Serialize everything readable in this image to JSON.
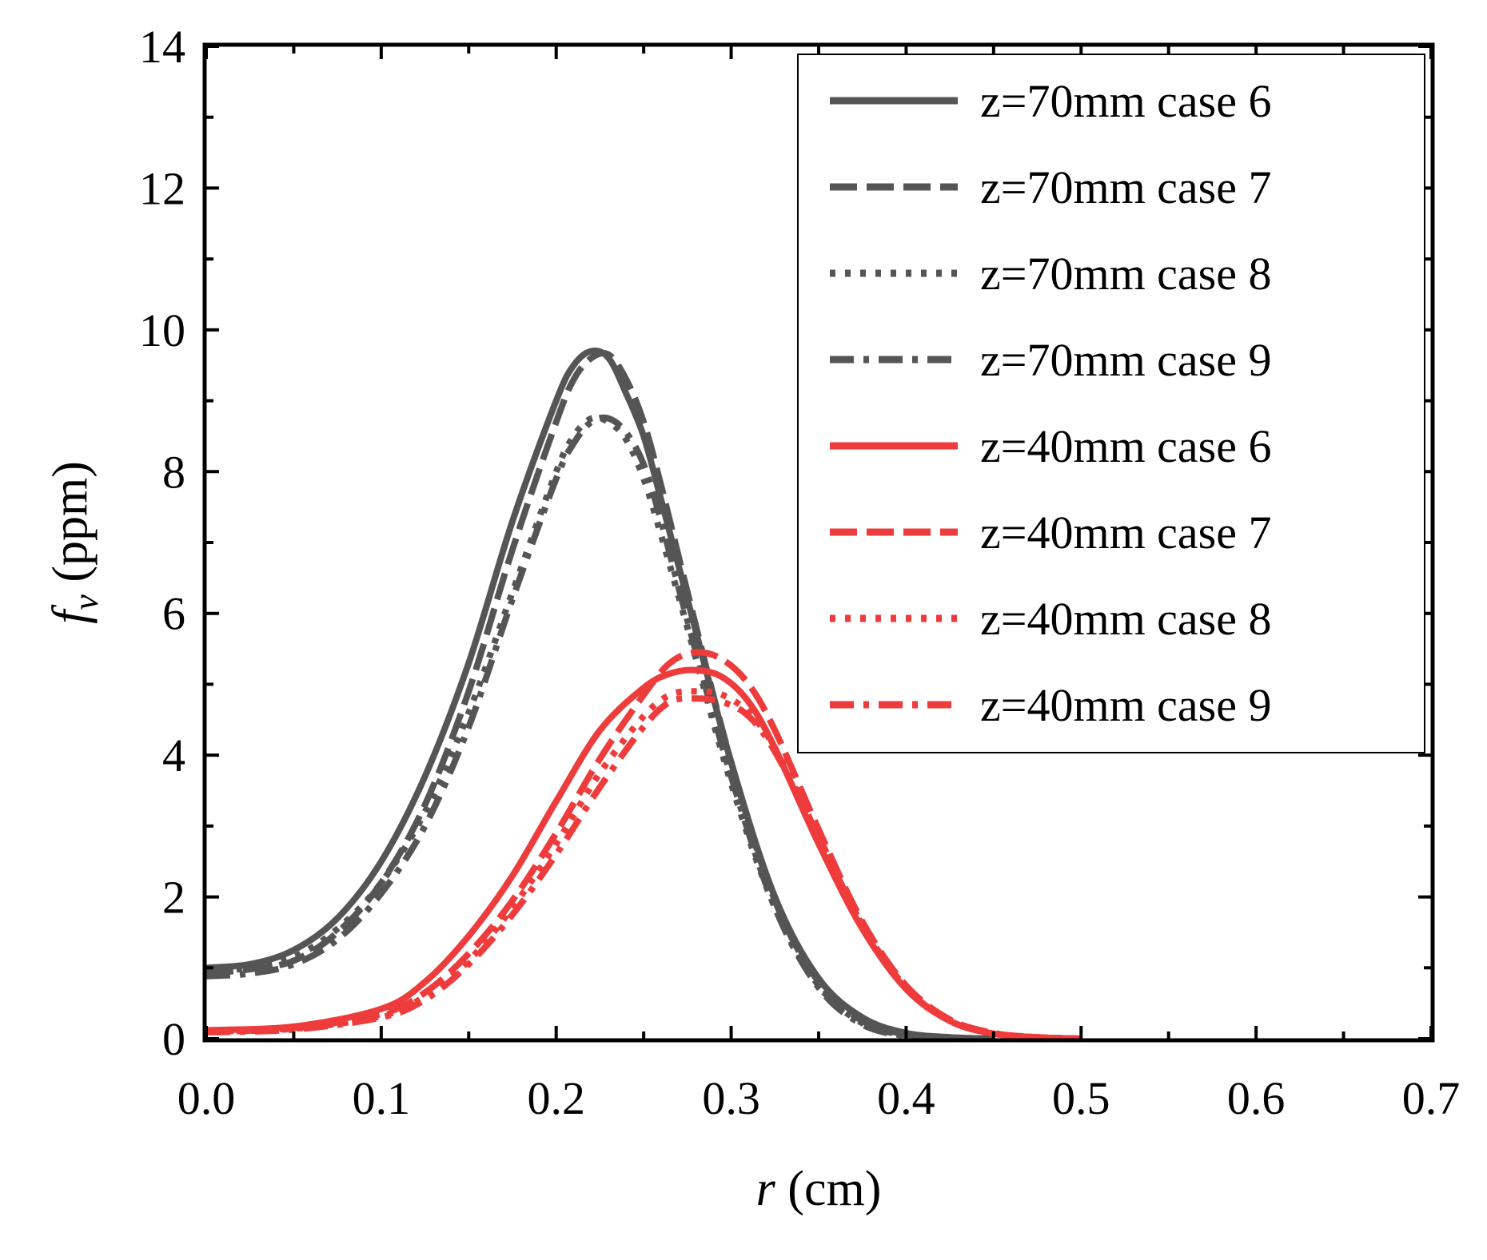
{
  "chart_data": {
    "type": "line",
    "title": "",
    "xlabel_var": "r",
    "xlabel_unit": " (cm)",
    "ylabel_var": "f",
    "ylabel_sub": "v",
    "ylabel_unit": " (ppm)",
    "xlim": [
      0,
      0.7
    ],
    "ylim": [
      0,
      14
    ],
    "xticks": [
      0.0,
      0.1,
      0.2,
      0.3,
      0.4,
      0.5,
      0.6,
      0.7
    ],
    "xtick_labels": [
      "0.0",
      "0.1",
      "0.2",
      "0.3",
      "0.4",
      "0.5",
      "0.6",
      "0.7"
    ],
    "yticks": [
      0,
      2,
      4,
      6,
      8,
      10,
      12,
      14
    ],
    "ytick_labels": [
      "0",
      "2",
      "4",
      "6",
      "8",
      "10",
      "12",
      "14"
    ],
    "grid": false,
    "legend_position": "top-right",
    "series": [
      {
        "name": "z=70mm case 6",
        "color": "#555555",
        "style": "solid",
        "x": [
          0.0,
          0.025,
          0.05,
          0.075,
          0.1,
          0.125,
          0.15,
          0.175,
          0.2,
          0.21,
          0.22,
          0.23,
          0.24,
          0.25,
          0.26,
          0.275,
          0.3,
          0.325,
          0.35,
          0.375,
          0.4,
          0.425,
          0.45
        ],
        "y": [
          1.0,
          1.05,
          1.25,
          1.7,
          2.5,
          3.7,
          5.3,
          7.3,
          9.0,
          9.5,
          9.7,
          9.6,
          9.1,
          8.5,
          7.6,
          6.2,
          3.9,
          2.0,
          0.85,
          0.3,
          0.08,
          0.02,
          0.0
        ]
      },
      {
        "name": "z=70mm case 7",
        "color": "#555555",
        "style": "dash",
        "x": [
          0.0,
          0.025,
          0.05,
          0.075,
          0.1,
          0.125,
          0.15,
          0.175,
          0.2,
          0.21,
          0.22,
          0.23,
          0.24,
          0.25,
          0.26,
          0.275,
          0.3,
          0.325,
          0.35,
          0.375,
          0.4,
          0.425,
          0.45
        ],
        "y": [
          0.92,
          0.98,
          1.1,
          1.5,
          2.2,
          3.3,
          4.9,
          6.9,
          8.7,
          9.3,
          9.6,
          9.65,
          9.3,
          8.7,
          7.8,
          6.3,
          3.9,
          1.95,
          0.8,
          0.25,
          0.06,
          0.01,
          0.0
        ]
      },
      {
        "name": "z=70mm case 8",
        "color": "#555555",
        "style": "dot",
        "x": [
          0.0,
          0.025,
          0.05,
          0.075,
          0.1,
          0.125,
          0.15,
          0.175,
          0.2,
          0.21,
          0.22,
          0.23,
          0.24,
          0.25,
          0.26,
          0.275,
          0.3,
          0.325,
          0.35,
          0.375,
          0.4,
          0.425,
          0.45
        ],
        "y": [
          0.95,
          1.0,
          1.15,
          1.55,
          2.2,
          3.2,
          4.6,
          6.3,
          8.0,
          8.5,
          8.75,
          8.7,
          8.45,
          7.9,
          7.1,
          5.8,
          3.6,
          1.85,
          0.75,
          0.22,
          0.05,
          0.01,
          0.0
        ]
      },
      {
        "name": "z=70mm case 9",
        "color": "#555555",
        "style": "dashdot",
        "x": [
          0.0,
          0.025,
          0.05,
          0.075,
          0.1,
          0.125,
          0.15,
          0.175,
          0.2,
          0.21,
          0.22,
          0.23,
          0.24,
          0.25,
          0.26,
          0.275,
          0.3,
          0.325,
          0.35,
          0.375,
          0.4,
          0.425,
          0.45
        ],
        "y": [
          0.88,
          0.92,
          1.05,
          1.4,
          2.05,
          3.0,
          4.4,
          6.2,
          7.9,
          8.4,
          8.7,
          8.75,
          8.55,
          8.1,
          7.3,
          5.9,
          3.7,
          1.85,
          0.72,
          0.2,
          0.04,
          0.01,
          0.0
        ]
      },
      {
        "name": "z=40mm case 6",
        "color": "#ee3b3b",
        "style": "solid",
        "x": [
          0.0,
          0.05,
          0.1,
          0.125,
          0.15,
          0.175,
          0.2,
          0.225,
          0.25,
          0.265,
          0.28,
          0.295,
          0.31,
          0.325,
          0.35,
          0.375,
          0.4,
          0.425,
          0.45,
          0.475,
          0.5
        ],
        "y": [
          0.12,
          0.17,
          0.42,
          0.8,
          1.45,
          2.3,
          3.35,
          4.35,
          4.95,
          5.15,
          5.2,
          5.1,
          4.75,
          4.1,
          2.75,
          1.55,
          0.7,
          0.25,
          0.07,
          0.02,
          0.0
        ]
      },
      {
        "name": "z=40mm case 7",
        "color": "#ee3b3b",
        "style": "dash",
        "x": [
          0.0,
          0.05,
          0.1,
          0.125,
          0.15,
          0.175,
          0.2,
          0.225,
          0.25,
          0.265,
          0.28,
          0.295,
          0.31,
          0.325,
          0.35,
          0.375,
          0.4,
          0.425,
          0.45,
          0.475,
          0.5
        ],
        "y": [
          0.1,
          0.15,
          0.35,
          0.65,
          1.2,
          1.95,
          2.9,
          3.95,
          4.85,
          5.3,
          5.45,
          5.35,
          5.0,
          4.35,
          2.95,
          1.65,
          0.75,
          0.27,
          0.08,
          0.02,
          0.0
        ]
      },
      {
        "name": "z=40mm case 8",
        "color": "#ee3b3b",
        "style": "dot",
        "x": [
          0.0,
          0.05,
          0.1,
          0.125,
          0.15,
          0.175,
          0.2,
          0.225,
          0.25,
          0.265,
          0.28,
          0.295,
          0.31,
          0.325,
          0.35,
          0.375,
          0.4,
          0.425,
          0.45,
          0.475,
          0.5
        ],
        "y": [
          0.1,
          0.14,
          0.32,
          0.6,
          1.1,
          1.85,
          2.75,
          3.75,
          4.55,
          4.85,
          4.9,
          4.85,
          4.6,
          4.1,
          2.85,
          1.6,
          0.72,
          0.25,
          0.07,
          0.02,
          0.0
        ]
      },
      {
        "name": "z=40mm case 9",
        "color": "#ee3b3b",
        "style": "dashdot",
        "x": [
          0.0,
          0.05,
          0.1,
          0.125,
          0.15,
          0.175,
          0.2,
          0.225,
          0.25,
          0.265,
          0.28,
          0.295,
          0.31,
          0.325,
          0.35,
          0.375,
          0.4,
          0.425,
          0.45,
          0.475,
          0.5
        ],
        "y": [
          0.09,
          0.13,
          0.3,
          0.55,
          1.05,
          1.75,
          2.6,
          3.55,
          4.4,
          4.75,
          4.8,
          4.75,
          4.55,
          4.05,
          2.85,
          1.6,
          0.72,
          0.25,
          0.07,
          0.02,
          0.0
        ]
      }
    ]
  }
}
